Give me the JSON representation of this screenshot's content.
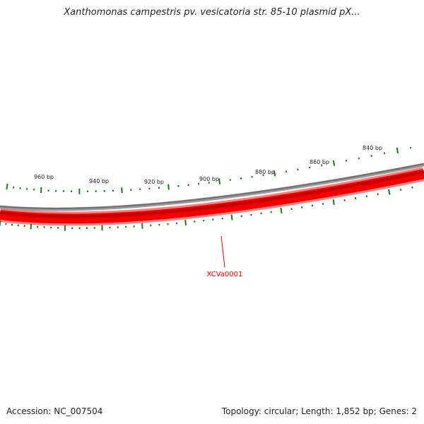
{
  "title": "Xanthomonas campestris pv. vesicatoria str. 85-10 plasmid pX...",
  "footer": {
    "accession": "Accession: NC_007504",
    "summary": "Topology: circular; Length: 1,852 bp; Genes: 2"
  },
  "ruler": {
    "labels": [
      "960 bp",
      "940 bp",
      "920 bp",
      "900 bp",
      "880 bp",
      "860 bp",
      "840 bp"
    ]
  },
  "genes": [
    {
      "name": "XCVa0001"
    }
  ],
  "colors": {
    "backbone": "#888888",
    "gene_forward": "#e00000",
    "gene_highlight": "#ff7070",
    "gene_dark": "#b00000",
    "tick": "#1e7a1e",
    "label": "#e00000"
  }
}
